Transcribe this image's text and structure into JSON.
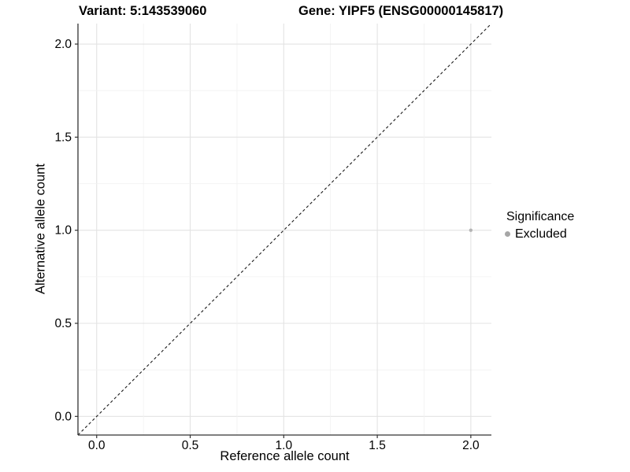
{
  "chart_data": {
    "type": "scatter",
    "titles": [
      "Variant: 5:143539060",
      "Gene: YIPF5 (ENSG00000145817)"
    ],
    "xlabel": "Reference allele count",
    "ylabel": "Alternative allele count",
    "xlim": [
      -0.1,
      2.11
    ],
    "ylim": [
      -0.1,
      2.11
    ],
    "x_ticks": [
      0,
      0.5,
      1,
      1.5,
      2
    ],
    "x_tick_labels": [
      "0.0",
      "0.5",
      "1.0",
      "1.5",
      "2.0"
    ],
    "y_ticks": [
      0,
      0.5,
      1,
      1.5,
      2
    ],
    "y_tick_labels": [
      "0.0",
      "0.5",
      "1.0",
      "1.5",
      "2.0"
    ],
    "minor_grid_step": 0.25,
    "grid": "major+minor",
    "identity_line": {
      "style": "dashed",
      "slope": 1,
      "intercept": 0
    },
    "series": [
      {
        "name": "Excluded",
        "color": "#b5b5b5",
        "point_radius": 2.2,
        "points": [
          {
            "x": 2.0,
            "y": 1.0
          }
        ]
      }
    ],
    "legend": {
      "title": "Significance",
      "position": "right",
      "entries": [
        {
          "label": "Excluded",
          "color": "#a6a6a6"
        }
      ]
    }
  },
  "theme": {
    "background": "#ffffff",
    "grid_major": "#e3e3e3",
    "grid_minor": "#f1f1f1",
    "axis_line": "#333333",
    "tick_color": "#333333",
    "text_color": "#000000",
    "reference_line": "#1a1a1a",
    "tick_font_size": "15.5"
  }
}
